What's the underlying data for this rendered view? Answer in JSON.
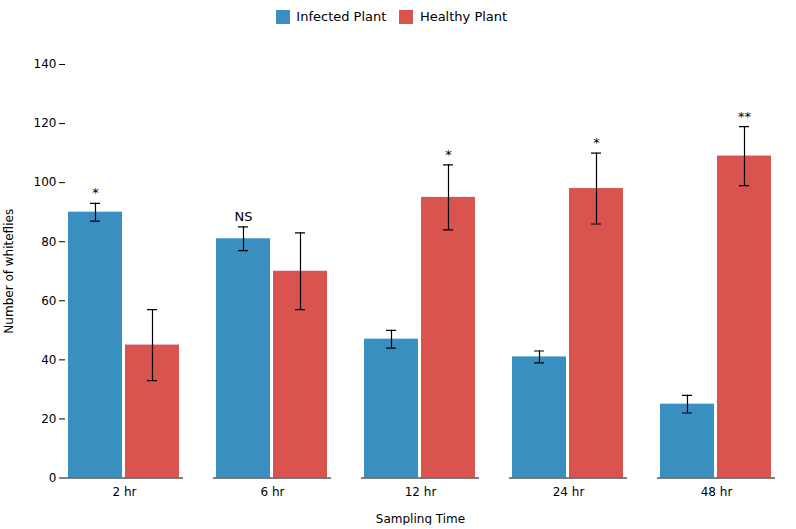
{
  "chart_data": {
    "type": "bar",
    "xlabel": "Sampling Time",
    "ylabel": "Number of whiteflies",
    "categories": [
      "2 hr",
      "6 hr",
      "12 hr",
      "24 hr",
      "48 hr"
    ],
    "series": [
      {
        "name": "Infected Plant",
        "color": "#3a8fc1",
        "values": [
          90,
          81,
          47,
          41,
          25
        ],
        "errors": [
          3,
          4,
          3,
          2,
          3
        ]
      },
      {
        "name": "Healthy Plant",
        "color": "#d9534f",
        "values": [
          45,
          70,
          95,
          98,
          109
        ],
        "errors": [
          12,
          13,
          11,
          12,
          10
        ]
      }
    ],
    "ylim": [
      0,
      140
    ],
    "yticks": [
      0,
      20,
      40,
      60,
      80,
      100,
      120,
      140
    ],
    "grid": false,
    "legend": "top",
    "annotations": [
      {
        "text": "*",
        "category": "2 hr",
        "series": "Infected Plant"
      },
      {
        "text": "NS",
        "category": "6 hr",
        "series": "Infected Plant"
      },
      {
        "text": "*",
        "category": "12 hr",
        "series": "Healthy Plant"
      },
      {
        "text": "*",
        "category": "24 hr",
        "series": "Healthy Plant"
      },
      {
        "text": "**",
        "category": "48 hr",
        "series": "Healthy Plant"
      }
    ]
  }
}
